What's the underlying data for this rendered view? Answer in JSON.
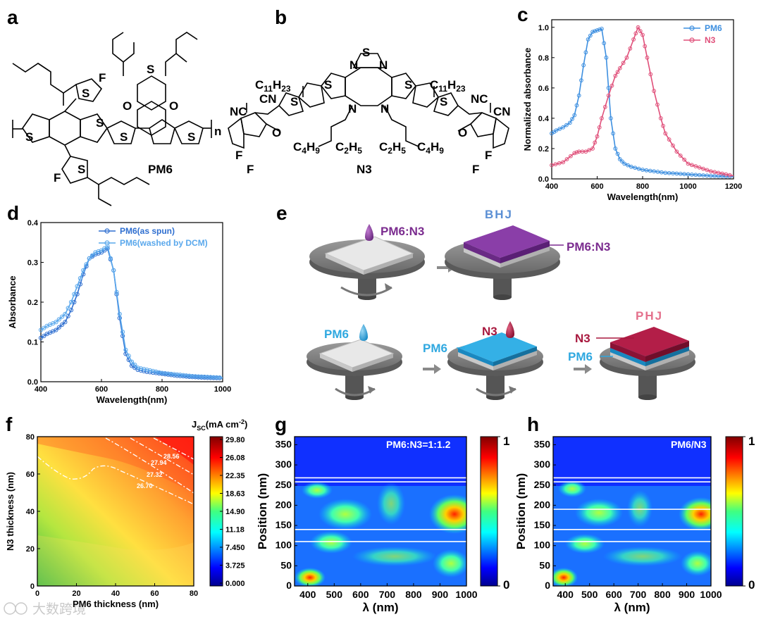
{
  "panels": {
    "a": {
      "label": "a",
      "name": "PM6",
      "atoms": [
        "F",
        "F",
        "S",
        "S",
        "S",
        "S",
        "S",
        "S",
        "O",
        "O",
        "S"
      ],
      "repeat": "n"
    },
    "b": {
      "label": "b",
      "name": "N3",
      "atoms": [
        "S",
        "N",
        "N",
        "S",
        "S",
        "S",
        "S",
        "N",
        "N",
        "O",
        "O",
        "F",
        "F",
        "F",
        "F",
        "NC",
        "CN",
        "NC",
        "CN"
      ],
      "chains": [
        {
          "base": "C",
          "sub1": "11",
          "rest": "H",
          "sub2": "23"
        },
        {
          "base": "C",
          "sub1": "11",
          "rest": "H",
          "sub2": "23"
        },
        {
          "base": "C",
          "sub1": "4",
          "rest": "H",
          "sub2": "9"
        },
        {
          "base": "C",
          "sub1": "2",
          "rest": "H",
          "sub2": "5"
        },
        {
          "base": "C",
          "sub1": "2",
          "rest": "H",
          "sub2": "5"
        },
        {
          "base": "C",
          "sub1": "4",
          "rest": "H",
          "sub2": "9"
        }
      ]
    },
    "c": {
      "label": "c"
    },
    "d": {
      "label": "d"
    },
    "e": {
      "label": "e",
      "drop_bhj": "PM6:N3",
      "title_bhj": "BHJ",
      "film_bhj": "PM6:N3",
      "drop_pm6": "PM6",
      "film_pm6": "PM6",
      "drop_n3": "N3",
      "title_phj": "PHJ",
      "phj_top": "N3",
      "phj_bottom": "PM6"
    },
    "f": {
      "label": "f"
    },
    "g": {
      "label": "g",
      "inset": "PM6:N3=1:1.2"
    },
    "h": {
      "label": "h",
      "inset": "PM6/N3"
    }
  },
  "colors": {
    "pm6": "#3d8fe0",
    "n3": "#e0507a",
    "bhj_title": "#5b8fd4",
    "phj_title": "#e4708c",
    "purple": "#7b2c8f",
    "blue_film": "#2fa8e0",
    "red_film": "#a8183e"
  },
  "watermark": "大数跨境",
  "chart_data": [
    {
      "id": "c",
      "type": "line",
      "xlabel": "Wavelength(nm)",
      "ylabel": "Normalized absorbance",
      "xlim": [
        400,
        1200
      ],
      "ylim": [
        0,
        1.05
      ],
      "xticks": [
        400,
        600,
        800,
        1000,
        1200
      ],
      "yticks": [
        0.0,
        0.2,
        0.4,
        0.6,
        0.8,
        1.0
      ],
      "series": [
        {
          "name": "PM6",
          "color": "#3d8fe0",
          "x": [
            400,
            420,
            450,
            480,
            500,
            520,
            540,
            560,
            580,
            600,
            620,
            640,
            660,
            680,
            700,
            720,
            750,
            800,
            850,
            900,
            1000,
            1100,
            1200
          ],
          "y": [
            0.3,
            0.32,
            0.34,
            0.37,
            0.42,
            0.55,
            0.75,
            0.92,
            0.97,
            0.98,
            0.99,
            0.8,
            0.4,
            0.2,
            0.13,
            0.1,
            0.08,
            0.06,
            0.05,
            0.04,
            0.03,
            0.02,
            0.015
          ]
        },
        {
          "name": "N3",
          "color": "#e0507a",
          "x": [
            400,
            450,
            500,
            520,
            550,
            580,
            600,
            620,
            650,
            680,
            700,
            730,
            760,
            780,
            800,
            820,
            850,
            880,
            900,
            950,
            1000,
            1100,
            1200
          ],
          "y": [
            0.09,
            0.11,
            0.17,
            0.18,
            0.18,
            0.2,
            0.28,
            0.4,
            0.55,
            0.68,
            0.73,
            0.8,
            0.92,
            1.0,
            0.95,
            0.8,
            0.58,
            0.4,
            0.3,
            0.18,
            0.1,
            0.05,
            0.02
          ]
        }
      ]
    },
    {
      "id": "d",
      "type": "line",
      "xlabel": "Wavelength(nm)",
      "ylabel": "Absorbance",
      "xlim": [
        400,
        1000
      ],
      "ylim": [
        0,
        0.4
      ],
      "xticks": [
        400,
        600,
        800,
        1000
      ],
      "yticks": [
        0.0,
        0.1,
        0.2,
        0.3,
        0.4
      ],
      "series": [
        {
          "name": "PM6(as spun)",
          "color": "#2f6fd0",
          "x": [
            400,
            420,
            450,
            480,
            500,
            520,
            540,
            560,
            580,
            600,
            620,
            640,
            660,
            680,
            700,
            720,
            750,
            800,
            850,
            900,
            950,
            1000
          ],
          "y": [
            0.11,
            0.12,
            0.13,
            0.15,
            0.18,
            0.22,
            0.27,
            0.31,
            0.32,
            0.325,
            0.335,
            0.28,
            0.16,
            0.07,
            0.04,
            0.03,
            0.025,
            0.02,
            0.015,
            0.012,
            0.01,
            0.009
          ]
        },
        {
          "name": "PM6(washed by DCM)",
          "color": "#5aa8ec",
          "x": [
            400,
            420,
            450,
            480,
            500,
            520,
            540,
            560,
            580,
            600,
            620,
            640,
            660,
            680,
            700,
            720,
            750,
            800,
            850,
            900,
            950,
            1000
          ],
          "y": [
            0.13,
            0.14,
            0.15,
            0.17,
            0.2,
            0.24,
            0.28,
            0.31,
            0.325,
            0.33,
            0.34,
            0.28,
            0.17,
            0.08,
            0.05,
            0.035,
            0.03,
            0.022,
            0.018,
            0.014,
            0.012,
            0.01
          ]
        }
      ]
    },
    {
      "id": "f",
      "type": "heatmap",
      "xlabel": "PM6 thickness (nm)",
      "ylabel": "N3 thickness (nm)",
      "colorbar_title": "J",
      "colorbar_sub": "SC",
      "colorbar_unit": "(mA cm",
      "colorbar_sup": "-2",
      "colorbar_close": ")",
      "xlim": [
        0,
        80
      ],
      "ylim": [
        0,
        80
      ],
      "xticks": [
        0,
        20,
        40,
        60,
        80
      ],
      "yticks": [
        0,
        20,
        40,
        60,
        80
      ],
      "colorbar_ticks": [
        "29.80",
        "26.08",
        "22.35",
        "18.63",
        "14.90",
        "11.18",
        "7.450",
        "3.725",
        "0.000"
      ],
      "contours": [
        "28.56",
        "27.94",
        "27.32",
        "26.70"
      ]
    },
    {
      "id": "g",
      "type": "heatmap",
      "xlabel": "λ (nm)",
      "ylabel": "Position (nm)",
      "xlim": [
        350,
        1000
      ],
      "ylim": [
        0,
        370
      ],
      "xticks": [
        400,
        500,
        600,
        700,
        800,
        900,
        1000
      ],
      "yticks": [
        0,
        50,
        100,
        150,
        200,
        250,
        300,
        350
      ],
      "colorbar_ticks": [
        "1",
        "0"
      ],
      "interfaces": [
        110,
        140,
        258,
        268
      ]
    },
    {
      "id": "h",
      "type": "heatmap",
      "xlabel": "λ (nm)",
      "ylabel": "Position (nm)",
      "xlim": [
        350,
        1000
      ],
      "ylim": [
        0,
        370
      ],
      "xticks": [
        400,
        500,
        600,
        700,
        800,
        900,
        1000
      ],
      "yticks": [
        0,
        50,
        100,
        150,
        200,
        250,
        300,
        350
      ],
      "colorbar_ticks": [
        "1",
        "0"
      ],
      "interfaces": [
        110,
        140,
        190,
        258,
        268
      ]
    }
  ]
}
